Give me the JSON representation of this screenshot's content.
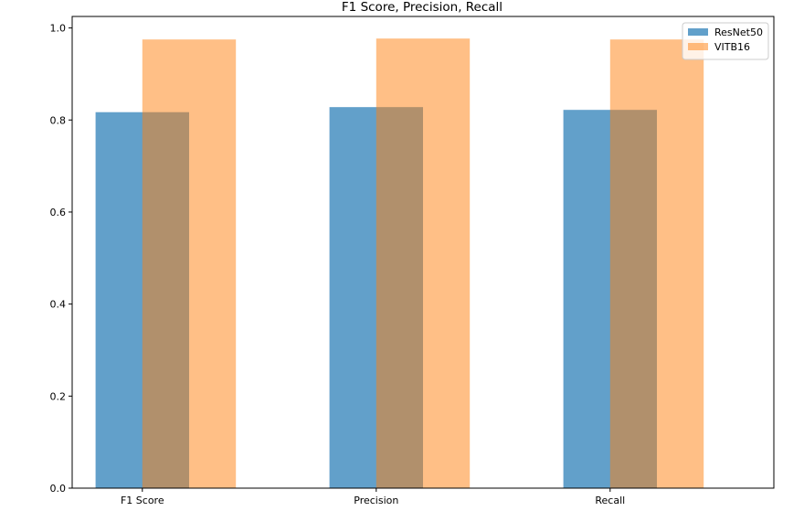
{
  "chart_data": {
    "type": "bar",
    "title": "F1 Score, Precision, Recall",
    "xlabel": "",
    "ylabel": "",
    "categories": [
      "F1 Score",
      "Precision",
      "Recall"
    ],
    "series": [
      {
        "name": "ResNet50",
        "values": [
          0.817,
          0.828,
          0.822
        ],
        "color": "#1f77b4",
        "opacity": 0.7
      },
      {
        "name": "VITB16",
        "values": [
          0.975,
          0.977,
          0.975
        ],
        "color": "#ff7f0e",
        "opacity": 0.5
      }
    ],
    "ylim": [
      0,
      1.025
    ],
    "yticks": [
      0.0,
      0.2,
      0.4,
      0.6,
      0.8,
      1.0
    ],
    "ytick_labels": [
      "0.0",
      "0.2",
      "0.4",
      "0.6",
      "0.8",
      "1.0"
    ],
    "grid": false,
    "legend_position": "top-right"
  }
}
